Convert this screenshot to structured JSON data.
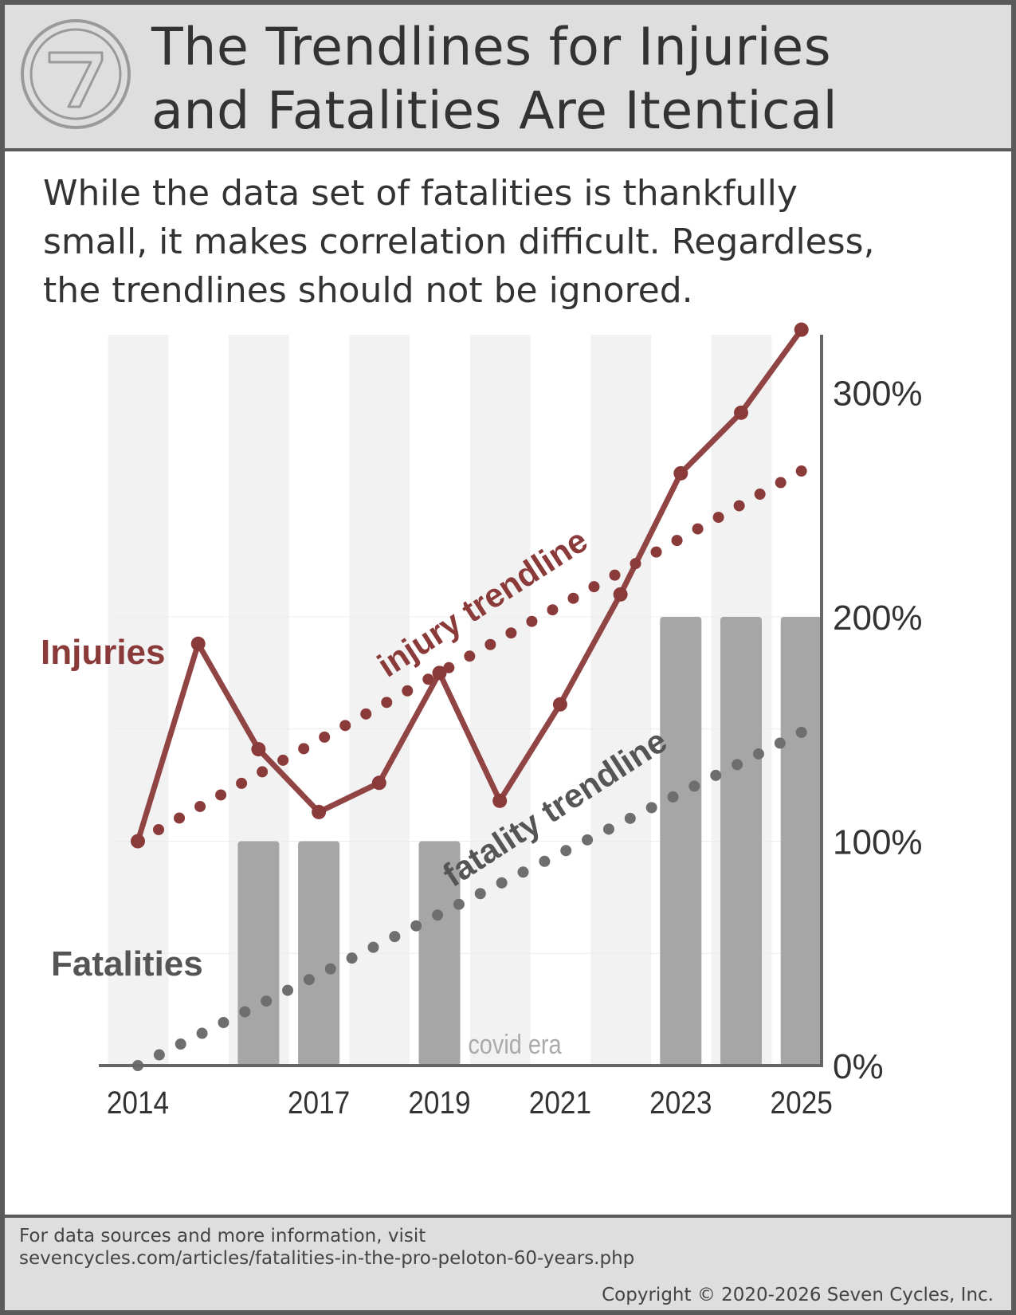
{
  "header": {
    "title_line1": "The Trendlines for Injuries",
    "title_line2": "and Fatalities Are Itentical",
    "logo_symbol": "7"
  },
  "subtitle": {
    "line1": "While the data set of fatalities is thankfully",
    "line2": "small, it makes correlation difficult.  Regardless,",
    "line3": "the trendlines should not be ignored."
  },
  "colors": {
    "injury": "#8b3a3a",
    "fatality": "#555555",
    "bar": "#a6a6a6",
    "band": "#f2f2f2",
    "axis": "#666666"
  },
  "chart_data": {
    "type": "bar",
    "categories": [
      "2014",
      "2015",
      "2016",
      "2017",
      "2018",
      "2019",
      "2020",
      "2021",
      "2022",
      "2023",
      "2024",
      "2025"
    ],
    "x_tick_labels": [
      "2014",
      "2017",
      "2019",
      "2021",
      "2023",
      "2025"
    ],
    "y_tick_labels": [
      "300%",
      "200%",
      "100%",
      "0%"
    ],
    "ylim": [
      0,
      300
    ],
    "y_axis_side": "right",
    "grid": true,
    "series": [
      {
        "name": "Fatalities",
        "type": "bar",
        "values": [
          0,
          0,
          100,
          100,
          0,
          100,
          0,
          0,
          0,
          200,
          200,
          200
        ]
      },
      {
        "name": "Injuries",
        "type": "line",
        "values": [
          100,
          188,
          141,
          113,
          126,
          175,
          118,
          161,
          210,
          264,
          291,
          328
        ]
      },
      {
        "name": "injury trendline",
        "type": "dotted-line",
        "values": [
          100,
          115,
          130,
          145,
          160,
          175,
          190,
          205,
          220,
          235,
          250,
          265
        ]
      },
      {
        "name": "fatality trendline",
        "type": "dotted-line",
        "values": [
          0,
          13.5,
          27,
          40.5,
          54,
          67.5,
          81,
          94.5,
          108,
          121.5,
          135,
          148.5
        ]
      }
    ],
    "annotations": {
      "injuries_label": "Injuries",
      "fatalities_label": "Fatalities",
      "injury_trend_label": "injury trendline",
      "fatality_trend_label": "fatality trendline",
      "covid_label": "covid era"
    }
  },
  "footer": {
    "line1": "For data sources and more information, visit",
    "line2": "sevencycles.com/articles/fatalities-in-the-pro-peloton-60-years.php",
    "copyright": "Copyright © 2020-2026 Seven Cycles, Inc."
  }
}
